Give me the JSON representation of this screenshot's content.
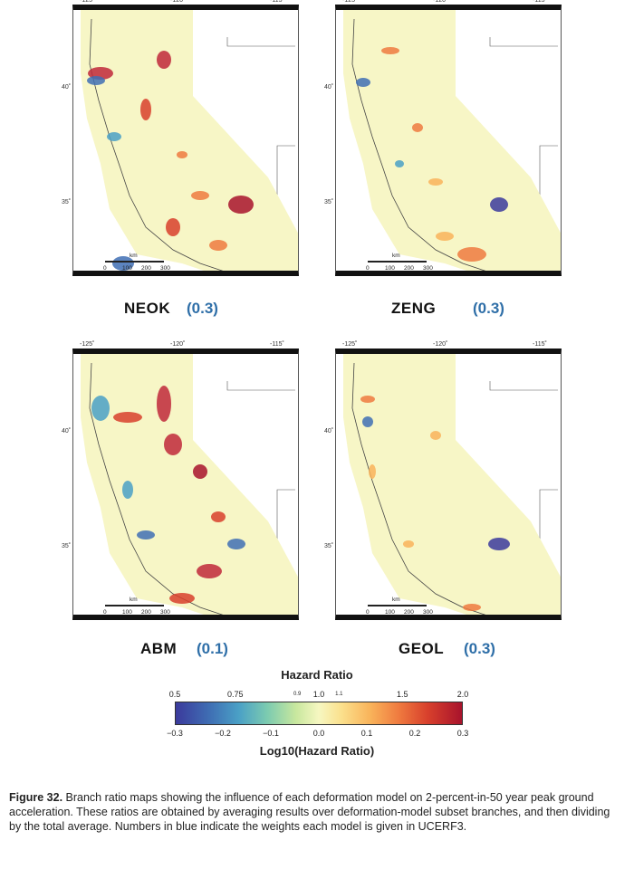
{
  "panels": [
    {
      "name": "NEOK",
      "weight": "(0.3)"
    },
    {
      "name": "ZENG",
      "weight": "(0.3)"
    },
    {
      "name": "ABM",
      "weight": "(0.1)"
    },
    {
      "name": "GEOL",
      "weight": "(0.3)"
    }
  ],
  "map_ticks": {
    "lon": [
      "-125˚",
      "-120˚",
      "-115˚"
    ],
    "lat": [
      "40˚",
      "35˚"
    ],
    "scale_unit": "km",
    "scale_values": [
      "0",
      "100",
      "200",
      "300"
    ]
  },
  "legend": {
    "title": "Hazard Ratio",
    "subtitle": "Log10(Hazard Ratio)",
    "top_ticks": [
      "0.5",
      "0.75",
      "0.9",
      "1.0",
      "1.1",
      "1.5",
      "2.0"
    ],
    "bottom_ticks": [
      "−0.3",
      "−0.2",
      "−0.1",
      "0.0",
      "0.1",
      "0.2",
      "0.3"
    ],
    "colors": {
      "low": "#3b3a9c",
      "mid": "#f6f7c1",
      "high": "#a8132c"
    }
  },
  "caption": {
    "figure_label": "Figure 32.",
    "text": "Branch ratio maps showing the influence of each deformation model on 2-percent-in-50 year peak ground acceleration. These ratios are obtained by averaging results over deformation-model subset branches, and then dividing by the total average. Numbers in blue indicate the weights each model is given in UCERF3."
  }
}
